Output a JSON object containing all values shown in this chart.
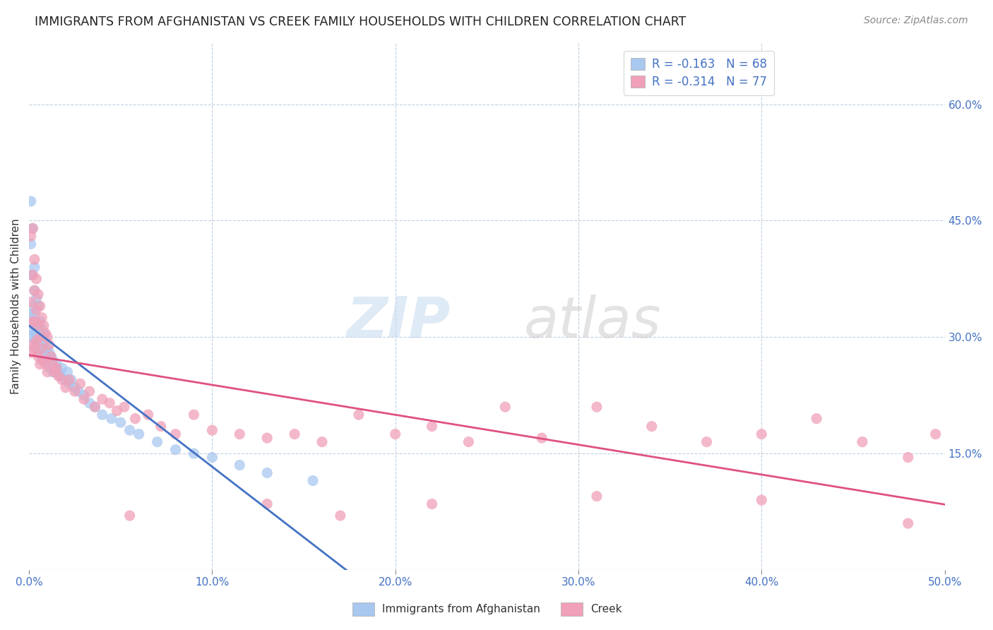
{
  "title": "IMMIGRANTS FROM AFGHANISTAN VS CREEK FAMILY HOUSEHOLDS WITH CHILDREN CORRELATION CHART",
  "source": "Source: ZipAtlas.com",
  "ylabel": "Family Households with Children",
  "legend_entry1": "R = -0.163   N = 68",
  "legend_entry2": "R = -0.314   N = 77",
  "legend_label1": "Immigrants from Afghanistan",
  "legend_label2": "Creek",
  "color_blue": "#A8C8F0",
  "color_pink": "#F0A0B8",
  "color_blue_line": "#4472C4",
  "color_pink_line": "#E05080",
  "color_blue_text": "#4472C4",
  "xmin": 0.0,
  "xmax": 0.5,
  "ymin": 0.0,
  "ymax": 0.68,
  "xticks": [
    0.0,
    0.1,
    0.2,
    0.3,
    0.4,
    0.5
  ],
  "xticklabels": [
    "0.0%",
    "10.0%",
    "20.0%",
    "30.0%",
    "40.0%",
    "50.0%"
  ],
  "yticks_right": [
    0.15,
    0.3,
    0.45,
    0.6
  ],
  "yticklabels_right": [
    "15.0%",
    "30.0%",
    "45.0%",
    "60.0%"
  ],
  "afg_x": [
    0.001,
    0.001,
    0.001,
    0.001,
    0.002,
    0.002,
    0.002,
    0.002,
    0.002,
    0.002,
    0.003,
    0.003,
    0.003,
    0.003,
    0.003,
    0.003,
    0.004,
    0.004,
    0.004,
    0.004,
    0.005,
    0.005,
    0.005,
    0.005,
    0.006,
    0.006,
    0.006,
    0.007,
    0.007,
    0.007,
    0.008,
    0.008,
    0.008,
    0.009,
    0.009,
    0.01,
    0.01,
    0.011,
    0.011,
    0.012,
    0.013,
    0.013,
    0.014,
    0.015,
    0.016,
    0.017,
    0.018,
    0.02,
    0.021,
    0.022,
    0.023,
    0.025,
    0.027,
    0.03,
    0.033,
    0.036,
    0.04,
    0.045,
    0.05,
    0.055,
    0.06,
    0.07,
    0.08,
    0.09,
    0.1,
    0.115,
    0.13,
    0.155
  ],
  "afg_y": [
    0.475,
    0.42,
    0.38,
    0.33,
    0.44,
    0.38,
    0.34,
    0.32,
    0.31,
    0.3,
    0.39,
    0.36,
    0.33,
    0.315,
    0.305,
    0.295,
    0.35,
    0.32,
    0.305,
    0.29,
    0.34,
    0.315,
    0.295,
    0.28,
    0.32,
    0.3,
    0.285,
    0.31,
    0.29,
    0.27,
    0.305,
    0.285,
    0.27,
    0.295,
    0.275,
    0.285,
    0.27,
    0.28,
    0.26,
    0.275,
    0.27,
    0.255,
    0.26,
    0.265,
    0.255,
    0.25,
    0.26,
    0.245,
    0.255,
    0.24,
    0.245,
    0.235,
    0.23,
    0.225,
    0.215,
    0.21,
    0.2,
    0.195,
    0.19,
    0.18,
    0.175,
    0.165,
    0.155,
    0.15,
    0.145,
    0.135,
    0.125,
    0.115
  ],
  "creek_x": [
    0.001,
    0.001,
    0.001,
    0.002,
    0.002,
    0.002,
    0.002,
    0.003,
    0.003,
    0.003,
    0.003,
    0.004,
    0.004,
    0.004,
    0.005,
    0.005,
    0.005,
    0.006,
    0.006,
    0.006,
    0.007,
    0.007,
    0.008,
    0.008,
    0.009,
    0.009,
    0.01,
    0.01,
    0.011,
    0.012,
    0.013,
    0.014,
    0.015,
    0.016,
    0.018,
    0.02,
    0.022,
    0.025,
    0.028,
    0.03,
    0.033,
    0.036,
    0.04,
    0.044,
    0.048,
    0.052,
    0.058,
    0.065,
    0.072,
    0.08,
    0.09,
    0.1,
    0.115,
    0.13,
    0.145,
    0.16,
    0.18,
    0.2,
    0.22,
    0.24,
    0.26,
    0.28,
    0.31,
    0.34,
    0.37,
    0.4,
    0.43,
    0.455,
    0.48,
    0.495,
    0.13,
    0.22,
    0.31,
    0.4,
    0.055,
    0.17,
    0.48
  ],
  "creek_y": [
    0.43,
    0.345,
    0.28,
    0.44,
    0.38,
    0.32,
    0.29,
    0.4,
    0.36,
    0.32,
    0.285,
    0.375,
    0.335,
    0.295,
    0.355,
    0.315,
    0.275,
    0.34,
    0.3,
    0.265,
    0.325,
    0.285,
    0.315,
    0.27,
    0.305,
    0.265,
    0.3,
    0.255,
    0.29,
    0.275,
    0.265,
    0.255,
    0.26,
    0.25,
    0.245,
    0.235,
    0.245,
    0.23,
    0.24,
    0.22,
    0.23,
    0.21,
    0.22,
    0.215,
    0.205,
    0.21,
    0.195,
    0.2,
    0.185,
    0.175,
    0.2,
    0.18,
    0.175,
    0.17,
    0.175,
    0.165,
    0.2,
    0.175,
    0.185,
    0.165,
    0.21,
    0.17,
    0.21,
    0.185,
    0.165,
    0.175,
    0.195,
    0.165,
    0.145,
    0.175,
    0.085,
    0.085,
    0.095,
    0.09,
    0.07,
    0.07,
    0.06
  ]
}
